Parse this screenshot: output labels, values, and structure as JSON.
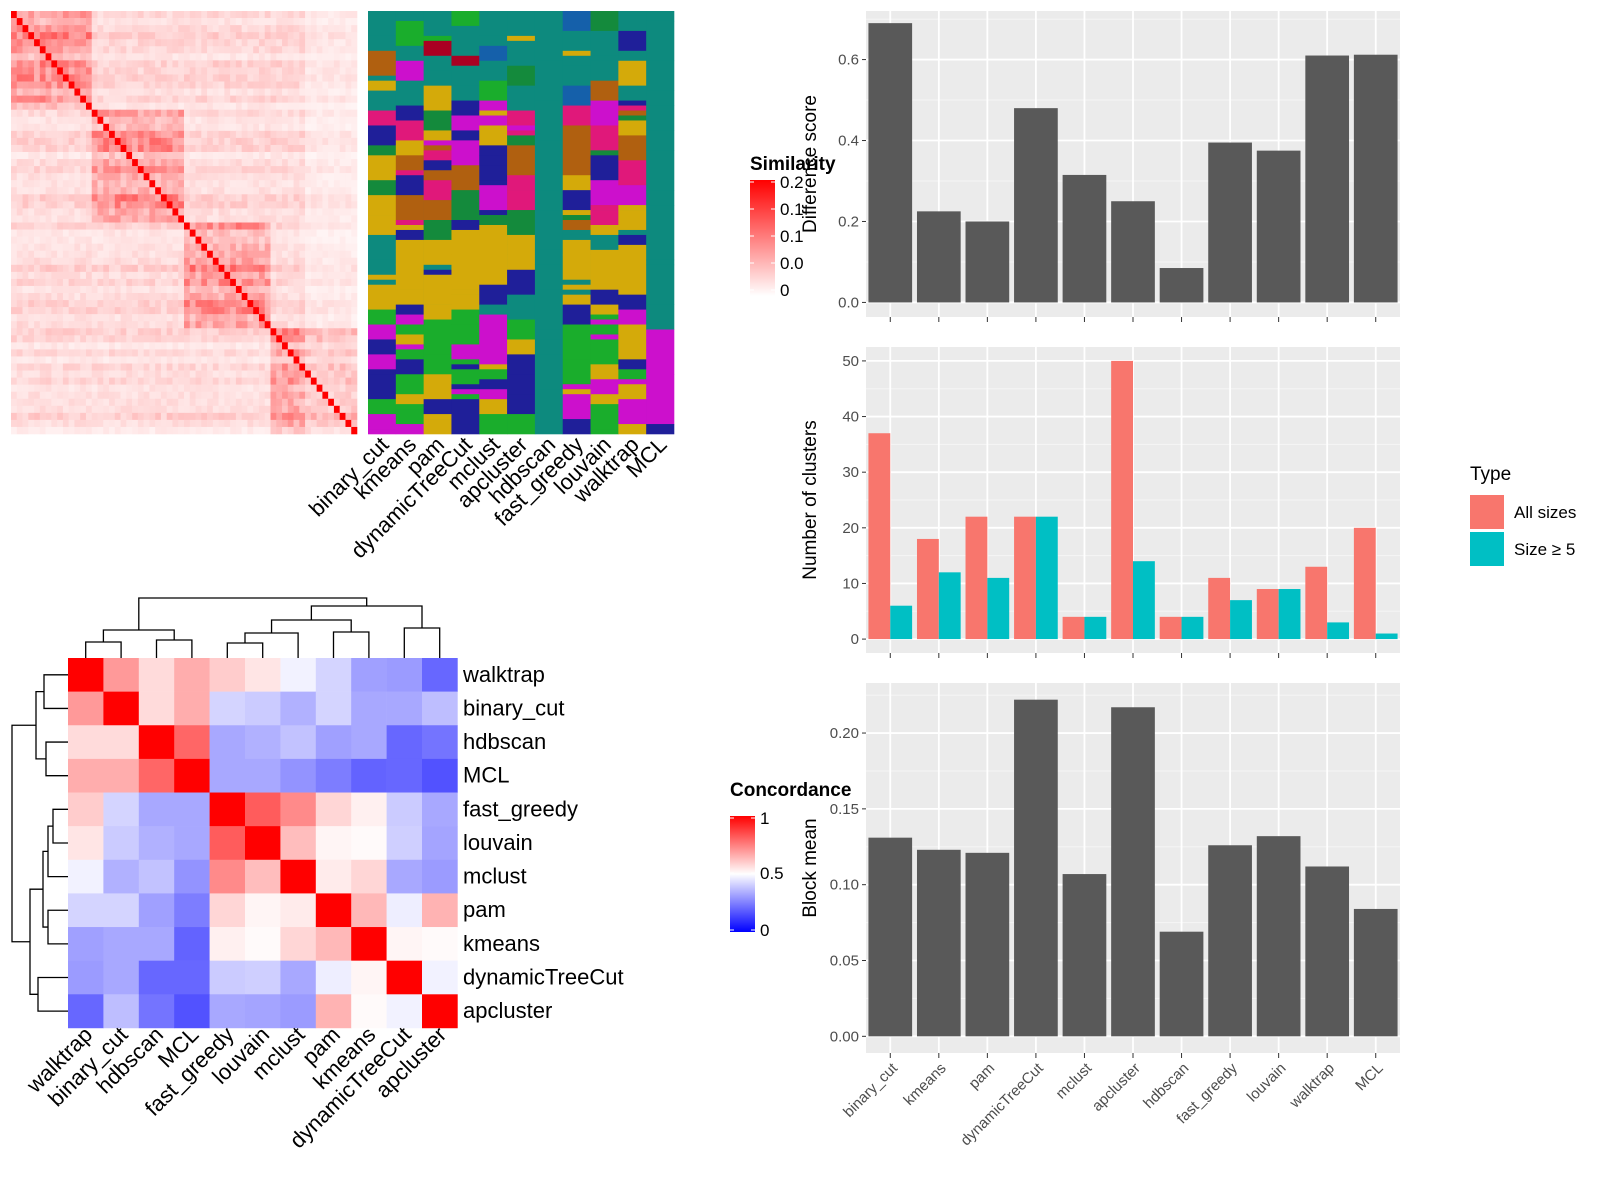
{
  "colors": {
    "panel_bg": "#ebebeb",
    "grid": "#ffffff",
    "bar": "#595959",
    "all_sizes": "#f8766d",
    "size5": "#00bfc4",
    "sim_high": "#ff0000",
    "conc_low": "#0000ff",
    "conc_mid": "#ffffff",
    "conc_high": "#ff0000"
  },
  "methods": [
    "binary_cut",
    "kmeans",
    "pam",
    "dynamicTreeCut",
    "mclust",
    "apcluster",
    "hdbscan",
    "fast_greedy",
    "louvain",
    "walktrap",
    "MCL"
  ],
  "sim_legend": {
    "title": "Similarity",
    "ticks": [
      "0.2",
      "0.1",
      "0.1",
      "0.0",
      "0"
    ]
  },
  "conc_legend": {
    "title": "Concordance",
    "ticks": [
      "1",
      "0.5",
      "0"
    ]
  },
  "chart_data": [
    {
      "type": "heatmap",
      "title": "",
      "description_rows": 150,
      "color_scale": {
        "min": 0,
        "max": 0.2,
        "colors": [
          "#ffffff",
          "#ff0000"
        ]
      }
    },
    {
      "type": "heatmap",
      "title": "",
      "columns": [
        "binary_cut",
        "kmeans",
        "pam",
        "dynamicTreeCut",
        "mclust",
        "apcluster",
        "hdbscan",
        "fast_greedy",
        "louvain",
        "walktrap",
        "MCL"
      ],
      "palette": [
        "#0d8a7e",
        "#1aad2c",
        "#d4aa0a",
        "#1f1f99",
        "#cc10cc",
        "#b06010",
        "#e0187a",
        "#aa0022",
        "#148a3c",
        "#1560aa"
      ]
    },
    {
      "type": "heatmap",
      "title": "",
      "rows": [
        "walktrap",
        "binary_cut",
        "hdbscan",
        "MCL",
        "fast_greedy",
        "louvain",
        "mclust",
        "pam",
        "kmeans",
        "dynamicTreeCut",
        "apcluster"
      ],
      "columns": [
        "walktrap",
        "binary_cut",
        "hdbscan",
        "MCL",
        "fast_greedy",
        "louvain",
        "mclust",
        "pam",
        "kmeans",
        "dynamicTreeCut",
        "apcluster"
      ],
      "values": [
        [
          1.0,
          0.7,
          0.57,
          0.66,
          0.6,
          0.55,
          0.47,
          0.4,
          0.28,
          0.27,
          0.15
        ],
        [
          0.7,
          1.0,
          0.57,
          0.66,
          0.4,
          0.38,
          0.32,
          0.4,
          0.3,
          0.3,
          0.35
        ],
        [
          0.57,
          0.57,
          1.0,
          0.8,
          0.3,
          0.32,
          0.36,
          0.28,
          0.3,
          0.15,
          0.18
        ],
        [
          0.66,
          0.66,
          0.8,
          1.0,
          0.3,
          0.3,
          0.25,
          0.2,
          0.14,
          0.15,
          0.1
        ],
        [
          0.6,
          0.4,
          0.3,
          0.3,
          1.0,
          0.82,
          0.73,
          0.58,
          0.53,
          0.38,
          0.3
        ],
        [
          0.55,
          0.38,
          0.32,
          0.3,
          0.82,
          1.0,
          0.63,
          0.52,
          0.51,
          0.39,
          0.29
        ],
        [
          0.47,
          0.32,
          0.36,
          0.25,
          0.73,
          0.63,
          1.0,
          0.54,
          0.58,
          0.3,
          0.27
        ],
        [
          0.4,
          0.4,
          0.28,
          0.2,
          0.58,
          0.52,
          0.54,
          1.0,
          0.64,
          0.46,
          0.65
        ],
        [
          0.28,
          0.3,
          0.3,
          0.14,
          0.53,
          0.51,
          0.58,
          0.64,
          1.0,
          0.52,
          0.51
        ],
        [
          0.27,
          0.3,
          0.15,
          0.15,
          0.38,
          0.39,
          0.3,
          0.46,
          0.52,
          1.0,
          0.47
        ],
        [
          0.15,
          0.35,
          0.18,
          0.1,
          0.3,
          0.29,
          0.27,
          0.65,
          0.51,
          0.47,
          1.0
        ]
      ],
      "color_scale": {
        "min": 0,
        "mid": 0.5,
        "max": 1
      }
    },
    {
      "type": "bar",
      "title": "",
      "categories": [
        "binary_cut",
        "kmeans",
        "pam",
        "dynamicTreeCut",
        "mclust",
        "apcluster",
        "hdbscan",
        "fast_greedy",
        "louvain",
        "walktrap",
        "MCL"
      ],
      "values": [
        0.69,
        0.225,
        0.2,
        0.48,
        0.315,
        0.25,
        0.085,
        0.395,
        0.375,
        0.61,
        0.612
      ],
      "ylabel": "Difference score",
      "ylim": [
        -0.036,
        0.72
      ],
      "yticks": [
        "0.0",
        "0.2",
        "0.4",
        "0.6"
      ],
      "ytick_values": [
        0,
        0.2,
        0.4,
        0.6
      ],
      "grid": true
    },
    {
      "type": "bar",
      "title": "",
      "categories": [
        "binary_cut",
        "kmeans",
        "pam",
        "dynamicTreeCut",
        "mclust",
        "apcluster",
        "hdbscan",
        "fast_greedy",
        "louvain",
        "walktrap",
        "MCL"
      ],
      "series": [
        {
          "name": "All sizes",
          "values": [
            37,
            18,
            22,
            22,
            4,
            50,
            4,
            11,
            9,
            13,
            20
          ]
        },
        {
          "name": "Size ≥ 5",
          "values": [
            6,
            12,
            11,
            22,
            4,
            14,
            4,
            7,
            9,
            3,
            1
          ]
        }
      ],
      "ylabel": "Number of clusters",
      "ylim": [
        -2.5,
        52.5
      ],
      "yticks": [
        "0",
        "10",
        "20",
        "30",
        "40",
        "50"
      ],
      "ytick_values": [
        0,
        10,
        20,
        30,
        40,
        50
      ],
      "legend": {
        "title": "Type",
        "placement": "right"
      },
      "grid": true
    },
    {
      "type": "bar",
      "title": "",
      "categories": [
        "binary_cut",
        "kmeans",
        "pam",
        "dynamicTreeCut",
        "mclust",
        "apcluster",
        "hdbscan",
        "fast_greedy",
        "louvain",
        "walktrap",
        "MCL"
      ],
      "values": [
        0.131,
        0.123,
        0.121,
        0.222,
        0.107,
        0.217,
        0.069,
        0.126,
        0.132,
        0.112,
        0.084
      ],
      "ylabel": "Block mean",
      "ylim": [
        -0.011,
        0.233
      ],
      "yticks": [
        "0.00",
        "0.05",
        "0.10",
        "0.15",
        "0.20"
      ],
      "ytick_values": [
        0,
        0.05,
        0.1,
        0.15,
        0.2
      ],
      "grid": true
    }
  ]
}
